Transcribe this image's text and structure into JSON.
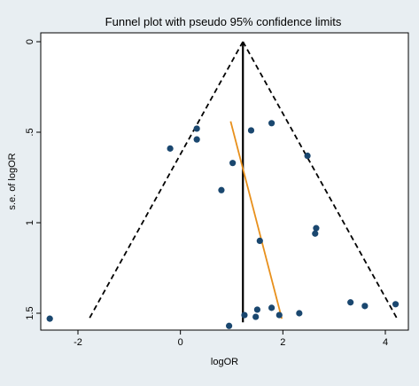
{
  "chart_data": {
    "type": "scatter",
    "title": "Funnel plot with pseudo 95% confidence limits",
    "xlabel": "logOR",
    "ylabel": "s.e. of logOR",
    "xlim": [
      -2.55,
      4.3
    ],
    "ylim": [
      0,
      1.55
    ],
    "y_reversed": true,
    "x_ticks": [
      -2,
      0,
      2,
      4
    ],
    "x_tick_labels": [
      "-2",
      "0",
      "2",
      "4"
    ],
    "y_ticks": [
      0,
      0.5,
      1,
      1.5
    ],
    "y_tick_labels": [
      "0",
      ".5",
      "1",
      "1.5"
    ],
    "grid": false,
    "legend": "none",
    "pooled_estimate": 1.22,
    "funnel_lines": [
      {
        "name": "lower 95% limit",
        "style": "dashed",
        "color": "#000000",
        "points": [
          [
            1.22,
            0
          ],
          [
            -1.8,
            1.54
          ]
        ]
      },
      {
        "name": "upper 95% limit",
        "style": "dashed",
        "color": "#000000",
        "points": [
          [
            1.22,
            0
          ],
          [
            4.25,
            1.54
          ]
        ]
      },
      {
        "name": "pooled estimate",
        "style": "solid",
        "color": "#000000",
        "points": [
          [
            1.22,
            0
          ],
          [
            1.22,
            1.55
          ]
        ]
      },
      {
        "name": "regression line",
        "style": "solid",
        "color": "#e8901c",
        "points": [
          [
            0.98,
            0.44
          ],
          [
            1.98,
            1.53
          ]
        ]
      }
    ],
    "points": [
      {
        "x": 0.32,
        "y": 0.48
      },
      {
        "x": 0.32,
        "y": 0.54
      },
      {
        "x": -0.2,
        "y": 0.59
      },
      {
        "x": 1.38,
        "y": 0.49
      },
      {
        "x": 1.78,
        "y": 0.45
      },
      {
        "x": 2.48,
        "y": 0.63
      },
      {
        "x": 1.02,
        "y": 0.67
      },
      {
        "x": 0.8,
        "y": 0.82
      },
      {
        "x": 2.65,
        "y": 1.03
      },
      {
        "x": 2.63,
        "y": 1.06
      },
      {
        "x": 1.55,
        "y": 1.1
      },
      {
        "x": 3.32,
        "y": 1.44
      },
      {
        "x": 3.6,
        "y": 1.46
      },
      {
        "x": 4.2,
        "y": 1.45
      },
      {
        "x": 1.78,
        "y": 1.47
      },
      {
        "x": 1.5,
        "y": 1.48
      },
      {
        "x": 2.32,
        "y": 1.5
      },
      {
        "x": 1.25,
        "y": 1.51
      },
      {
        "x": 1.47,
        "y": 1.52
      },
      {
        "x": 1.93,
        "y": 1.51
      },
      {
        "x": -2.55,
        "y": 1.53
      },
      {
        "x": 0.95,
        "y": 1.57
      }
    ],
    "colors": {
      "background": "#e8eef2",
      "plot_background": "#ffffff",
      "marker": "#1a476f",
      "regression": "#e8901c"
    }
  }
}
